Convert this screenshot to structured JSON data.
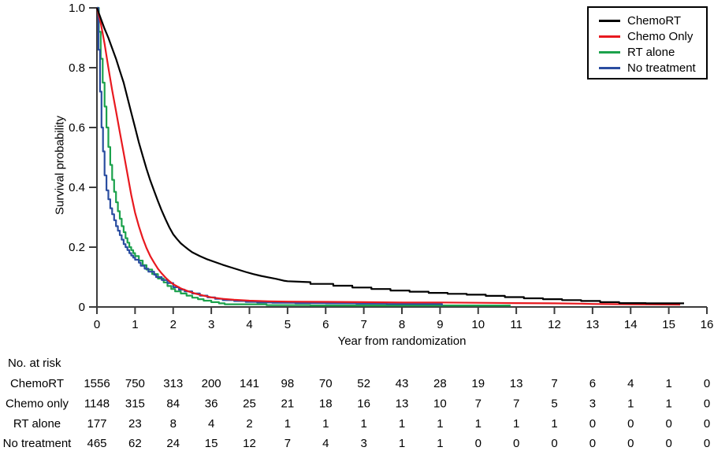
{
  "chart_data": {
    "type": "line",
    "subtype": "kaplan-meier-survival",
    "title": "",
    "xlabel": "Year from randomization",
    "ylabel": "Survival probability",
    "xlim": [
      0,
      16
    ],
    "ylim": [
      0,
      1.0
    ],
    "grid": false,
    "legend_position": "top-right",
    "x_ticks": [
      "0",
      "1",
      "2",
      "3",
      "4",
      "5",
      "6",
      "7",
      "8",
      "9",
      "10",
      "11",
      "12",
      "13",
      "14",
      "15",
      "16"
    ],
    "y_ticks": [
      {
        "v": 1.0,
        "label": "1.0"
      },
      {
        "v": 0.8,
        "label": "0.8"
      },
      {
        "v": 0.6,
        "label": "0.6"
      },
      {
        "v": 0.4,
        "label": "0.4"
      },
      {
        "v": 0.2,
        "label": "0.2"
      },
      {
        "v": 0.0,
        "label": "0"
      }
    ],
    "series": [
      {
        "name": "ChemoRT",
        "color": "#000000",
        "interp": "linear",
        "points": [
          [
            0,
            1.0
          ],
          [
            0.1,
            0.965
          ],
          [
            0.2,
            0.93
          ],
          [
            0.3,
            0.9
          ],
          [
            0.4,
            0.865
          ],
          [
            0.5,
            0.83
          ],
          [
            0.6,
            0.79
          ],
          [
            0.7,
            0.75
          ],
          [
            0.8,
            0.7
          ],
          [
            0.9,
            0.65
          ],
          [
            1.0,
            0.6
          ],
          [
            1.1,
            0.55
          ],
          [
            1.2,
            0.505
          ],
          [
            1.3,
            0.462
          ],
          [
            1.4,
            0.423
          ],
          [
            1.5,
            0.388
          ],
          [
            1.6,
            0.354
          ],
          [
            1.7,
            0.322
          ],
          [
            1.8,
            0.293
          ],
          [
            1.9,
            0.266
          ],
          [
            2.0,
            0.243
          ],
          [
            2.1,
            0.227
          ],
          [
            2.2,
            0.213
          ],
          [
            2.3,
            0.202
          ],
          [
            2.4,
            0.192
          ],
          [
            2.5,
            0.183
          ],
          [
            2.7,
            0.17
          ],
          [
            2.9,
            0.159
          ],
          [
            3.1,
            0.15
          ],
          [
            3.3,
            0.141
          ],
          [
            3.5,
            0.133
          ],
          [
            3.7,
            0.125
          ],
          [
            3.9,
            0.117
          ],
          [
            4.1,
            0.11
          ],
          [
            4.3,
            0.104
          ],
          [
            4.5,
            0.099
          ],
          [
            4.7,
            0.094
          ],
          [
            4.9,
            0.088
          ],
          [
            5.0,
            0.086
          ],
          [
            5.6,
            0.083
          ],
          [
            5.6,
            0.077
          ],
          [
            6.2,
            0.077
          ],
          [
            6.2,
            0.071
          ],
          [
            6.7,
            0.071
          ],
          [
            6.7,
            0.065
          ],
          [
            7.2,
            0.065
          ],
          [
            7.2,
            0.06
          ],
          [
            7.7,
            0.06
          ],
          [
            7.7,
            0.055
          ],
          [
            8.2,
            0.055
          ],
          [
            8.2,
            0.051
          ],
          [
            8.7,
            0.051
          ],
          [
            8.7,
            0.047
          ],
          [
            9.2,
            0.047
          ],
          [
            9.2,
            0.044
          ],
          [
            9.7,
            0.044
          ],
          [
            9.7,
            0.041
          ],
          [
            10.2,
            0.041
          ],
          [
            10.2,
            0.037
          ],
          [
            10.7,
            0.037
          ],
          [
            10.7,
            0.033
          ],
          [
            11.2,
            0.033
          ],
          [
            11.2,
            0.029
          ],
          [
            11.7,
            0.029
          ],
          [
            11.7,
            0.026
          ],
          [
            12.2,
            0.026
          ],
          [
            12.2,
            0.023
          ],
          [
            12.7,
            0.023
          ],
          [
            12.7,
            0.02
          ],
          [
            13.2,
            0.02
          ],
          [
            13.2,
            0.016
          ],
          [
            13.7,
            0.016
          ],
          [
            13.7,
            0.013
          ],
          [
            14.4,
            0.013
          ],
          [
            14.4,
            0.012
          ],
          [
            15.4,
            0.012
          ]
        ]
      },
      {
        "name": "Chemo Only",
        "color": "#e8191f",
        "interp": "linear",
        "points": [
          [
            0,
            1.0
          ],
          [
            0.1,
            0.95
          ],
          [
            0.2,
            0.88
          ],
          [
            0.3,
            0.8
          ],
          [
            0.4,
            0.725
          ],
          [
            0.5,
            0.655
          ],
          [
            0.6,
            0.585
          ],
          [
            0.7,
            0.515
          ],
          [
            0.8,
            0.445
          ],
          [
            0.9,
            0.375
          ],
          [
            1.0,
            0.315
          ],
          [
            1.1,
            0.27
          ],
          [
            1.2,
            0.23
          ],
          [
            1.3,
            0.197
          ],
          [
            1.4,
            0.17
          ],
          [
            1.5,
            0.148
          ],
          [
            1.6,
            0.128
          ],
          [
            1.7,
            0.112
          ],
          [
            1.8,
            0.098
          ],
          [
            1.9,
            0.086
          ],
          [
            2.0,
            0.076
          ],
          [
            2.2,
            0.062
          ],
          [
            2.4,
            0.052
          ],
          [
            2.6,
            0.044
          ],
          [
            2.8,
            0.038
          ],
          [
            3.0,
            0.032
          ],
          [
            3.3,
            0.027
          ],
          [
            3.6,
            0.024
          ],
          [
            4.0,
            0.021
          ],
          [
            4.5,
            0.019
          ],
          [
            5.0,
            0.018
          ],
          [
            6.0,
            0.017
          ],
          [
            7.0,
            0.016
          ],
          [
            8.0,
            0.015
          ],
          [
            9.0,
            0.015
          ],
          [
            10.0,
            0.014
          ],
          [
            11.0,
            0.013
          ],
          [
            12.0,
            0.012
          ],
          [
            12.7,
            0.011
          ],
          [
            13.0,
            0.01
          ],
          [
            14.0,
            0.009
          ],
          [
            15.3,
            0.008
          ]
        ]
      },
      {
        "name": "RT alone",
        "color": "#1ca24c",
        "interp": "step",
        "points": [
          [
            0,
            1.0
          ],
          [
            0.05,
            0.92
          ],
          [
            0.1,
            0.83
          ],
          [
            0.15,
            0.75
          ],
          [
            0.2,
            0.67
          ],
          [
            0.25,
            0.6
          ],
          [
            0.3,
            0.535
          ],
          [
            0.35,
            0.475
          ],
          [
            0.4,
            0.425
          ],
          [
            0.45,
            0.385
          ],
          [
            0.5,
            0.35
          ],
          [
            0.55,
            0.32
          ],
          [
            0.6,
            0.295
          ],
          [
            0.65,
            0.27
          ],
          [
            0.7,
            0.25
          ],
          [
            0.75,
            0.23
          ],
          [
            0.8,
            0.215
          ],
          [
            0.85,
            0.2
          ],
          [
            0.9,
            0.19
          ],
          [
            0.95,
            0.18
          ],
          [
            1.0,
            0.17
          ],
          [
            1.1,
            0.155
          ],
          [
            1.2,
            0.14
          ],
          [
            1.3,
            0.125
          ],
          [
            1.45,
            0.11
          ],
          [
            1.6,
            0.095
          ],
          [
            1.75,
            0.082
          ],
          [
            1.85,
            0.07
          ],
          [
            1.95,
            0.06
          ],
          [
            2.05,
            0.052
          ],
          [
            2.2,
            0.045
          ],
          [
            2.35,
            0.038
          ],
          [
            2.5,
            0.031
          ],
          [
            2.65,
            0.026
          ],
          [
            2.8,
            0.021
          ],
          [
            3.0,
            0.016
          ],
          [
            3.2,
            0.012
          ],
          [
            3.35,
            0.009
          ],
          [
            4.45,
            0.009
          ],
          [
            4.45,
            0.006
          ],
          [
            5.6,
            0.006
          ],
          [
            5.6,
            0.005
          ],
          [
            10.85,
            0.005
          ]
        ]
      },
      {
        "name": "No treatment",
        "color": "#2a4da0",
        "interp": "step",
        "points": [
          [
            0,
            1.0
          ],
          [
            0.04,
            0.86
          ],
          [
            0.08,
            0.72
          ],
          [
            0.12,
            0.6
          ],
          [
            0.16,
            0.52
          ],
          [
            0.2,
            0.44
          ],
          [
            0.25,
            0.39
          ],
          [
            0.3,
            0.36
          ],
          [
            0.35,
            0.33
          ],
          [
            0.4,
            0.31
          ],
          [
            0.45,
            0.29
          ],
          [
            0.5,
            0.27
          ],
          [
            0.55,
            0.255
          ],
          [
            0.6,
            0.24
          ],
          [
            0.65,
            0.225
          ],
          [
            0.7,
            0.21
          ],
          [
            0.75,
            0.2
          ],
          [
            0.8,
            0.19
          ],
          [
            0.85,
            0.18
          ],
          [
            0.9,
            0.172
          ],
          [
            0.95,
            0.165
          ],
          [
            1.0,
            0.158
          ],
          [
            1.1,
            0.148
          ],
          [
            1.15,
            0.138
          ],
          [
            1.25,
            0.128
          ],
          [
            1.35,
            0.118
          ],
          [
            1.5,
            0.108
          ],
          [
            1.55,
            0.1
          ],
          [
            1.7,
            0.09
          ],
          [
            1.85,
            0.08
          ],
          [
            2.0,
            0.066
          ],
          [
            2.15,
            0.058
          ],
          [
            2.3,
            0.052
          ],
          [
            2.5,
            0.045
          ],
          [
            2.7,
            0.038
          ],
          [
            2.9,
            0.032
          ],
          [
            3.1,
            0.027
          ],
          [
            3.3,
            0.023
          ],
          [
            3.6,
            0.02
          ],
          [
            3.9,
            0.017
          ],
          [
            4.2,
            0.015
          ],
          [
            4.6,
            0.014
          ],
          [
            5.2,
            0.013
          ],
          [
            6.0,
            0.012
          ],
          [
            6.8,
            0.011
          ],
          [
            7.6,
            0.01
          ],
          [
            9.05,
            0.01
          ],
          [
            9.05,
            0.005
          ]
        ]
      }
    ],
    "at_risk": {
      "title": "No. at risk",
      "rows": [
        {
          "label": "ChemoRT",
          "counts": [
            1556,
            750,
            313,
            200,
            141,
            98,
            70,
            52,
            43,
            28,
            19,
            13,
            7,
            6,
            4,
            1,
            0
          ]
        },
        {
          "label": "Chemo only",
          "counts": [
            1148,
            315,
            84,
            36,
            25,
            21,
            18,
            16,
            13,
            10,
            7,
            7,
            5,
            3,
            1,
            1,
            0
          ]
        },
        {
          "label": "RT alone",
          "counts": [
            177,
            23,
            8,
            4,
            2,
            1,
            1,
            1,
            1,
            1,
            1,
            1,
            1,
            0,
            0,
            0,
            0
          ]
        },
        {
          "label": "No treatment",
          "counts": [
            465,
            62,
            24,
            15,
            12,
            7,
            4,
            3,
            1,
            1,
            0,
            0,
            0,
            0,
            0,
            0,
            0
          ]
        }
      ]
    },
    "axis_color": "#3c3c3c",
    "text_color": "#000000"
  }
}
